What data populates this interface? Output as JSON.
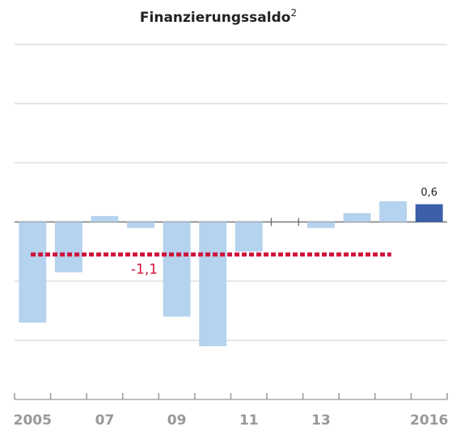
{
  "chart_data": {
    "type": "bar",
    "title": "Finanzierungssaldo",
    "title_note": "2",
    "categories": [
      "2005",
      null,
      "07",
      null,
      "09",
      null,
      "11",
      null,
      "13",
      null,
      null,
      "2016"
    ],
    "values": [
      -3.4,
      -1.7,
      0.2,
      -0.2,
      -3.2,
      -4.2,
      -1.0,
      0,
      -0.2,
      0.3,
      0.7,
      0.6
    ],
    "value_labels": [
      null,
      null,
      null,
      null,
      null,
      null,
      null,
      null,
      null,
      null,
      null,
      "0,6"
    ],
    "colors": [
      "#b5d2ee",
      "#b5d2ee",
      "#b5d2ee",
      "#b5d2ee",
      "#b5d2ee",
      "#b5d2ee",
      "#b5d2ee",
      "#b5d2ee",
      "#b5d2ee",
      "#b5d2ee",
      "#b5d2ee",
      "#3b5fa8"
    ],
    "ylim": [
      -6,
      6
    ],
    "yticks": [
      -6,
      -4,
      -2,
      0,
      2,
      4,
      6
    ],
    "grid": true,
    "reference_line": {
      "value": -1.1,
      "label": "-1,1",
      "color": "#d0103a"
    }
  }
}
